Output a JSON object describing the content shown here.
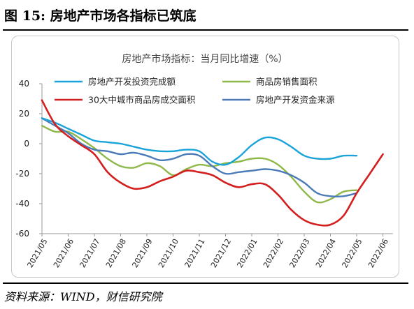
{
  "figure": {
    "title": "图 15: 房地产市场各指标已筑底",
    "source": "资料来源：WIND，财信研究院"
  },
  "chart_data": {
    "type": "line",
    "title": "房地产市场指标：当月同比增速（%）",
    "xlabel": "",
    "ylabel": "",
    "x": [
      "2021/05",
      "2021/06",
      "2021/07",
      "2021/08",
      "2021/09",
      "2021/10",
      "2021/11",
      "2021/12",
      "2022/01",
      "2022/02",
      "2022/03",
      "2022/04",
      "2022/05",
      "2022/06"
    ],
    "yticks": [
      40,
      20,
      0,
      -20,
      -40,
      -60
    ],
    "ylim": [
      -60,
      40
    ],
    "grid": false,
    "legend": "top",
    "series": [
      {
        "name": "房地产开发投资完成额",
        "color": "#1aa3d9",
        "x": [
          0,
          0.5,
          1,
          1.5,
          2,
          2.5,
          3,
          3.5,
          4,
          4.5,
          5,
          5.5,
          6,
          6.5,
          7,
          7.5,
          8,
          8.5,
          9,
          9.5,
          10,
          10.5,
          11,
          11.5,
          12
        ],
        "values": [
          17,
          14,
          10,
          6,
          2,
          1,
          0,
          -2,
          -4,
          -5,
          -5,
          -4,
          -5,
          -12,
          -14,
          -9,
          -1,
          4,
          3,
          -2,
          -8,
          -10,
          -10,
          -8,
          -8
        ]
      },
      {
        "name": "商品房销售面积",
        "color": "#8fb84b",
        "x": [
          0,
          0.5,
          1,
          1.5,
          2,
          2.5,
          3,
          3.5,
          4,
          4.5,
          5,
          5.5,
          6,
          6.5,
          7,
          7.5,
          8,
          8.5,
          9,
          9.5,
          10,
          10.5,
          11,
          11.5,
          12
        ],
        "values": [
          12,
          8,
          8,
          3,
          -3,
          -10,
          -15,
          -16,
          -13,
          -15,
          -21,
          -17,
          -14,
          -15,
          -13,
          -12,
          -10,
          -10,
          -14,
          -22,
          -32,
          -39,
          -37,
          -32,
          -31
        ]
      },
      {
        "name": "30大中城市商品房成交面积",
        "color": "#d41f1f",
        "x": [
          0,
          0.5,
          1,
          1.5,
          2,
          2.5,
          3,
          3.5,
          4,
          4.5,
          5,
          5.5,
          6,
          6.5,
          7,
          7.5,
          8,
          8.5,
          9,
          9.5,
          10,
          10.5,
          11,
          11.5,
          12,
          12.5,
          13
        ],
        "values": [
          29,
          13,
          5,
          -1,
          -7,
          -19,
          -26,
          -30,
          -29,
          -25,
          -22,
          -18,
          -19,
          -21,
          -26,
          -29,
          -27,
          -27,
          -34,
          -44,
          -51,
          -54,
          -54,
          -48,
          -33,
          -20,
          -7
        ]
      },
      {
        "name": "房地产开发资金来源",
        "color": "#4a7ab7",
        "x": [
          0,
          0.5,
          1,
          1.5,
          2,
          2.5,
          3,
          3.5,
          4,
          4.5,
          5,
          5.5,
          6,
          6.5,
          7,
          7.5,
          8,
          8.5,
          9,
          9.5,
          10,
          10.5,
          11,
          11.5,
          12
        ],
        "values": [
          17,
          12,
          7,
          0,
          -4,
          -5,
          -7,
          -6,
          -8,
          -11,
          -10,
          -7,
          -8,
          -15,
          -20,
          -19,
          -18,
          -17,
          -18,
          -21,
          -26,
          -33,
          -35,
          -35,
          -33
        ]
      }
    ]
  }
}
